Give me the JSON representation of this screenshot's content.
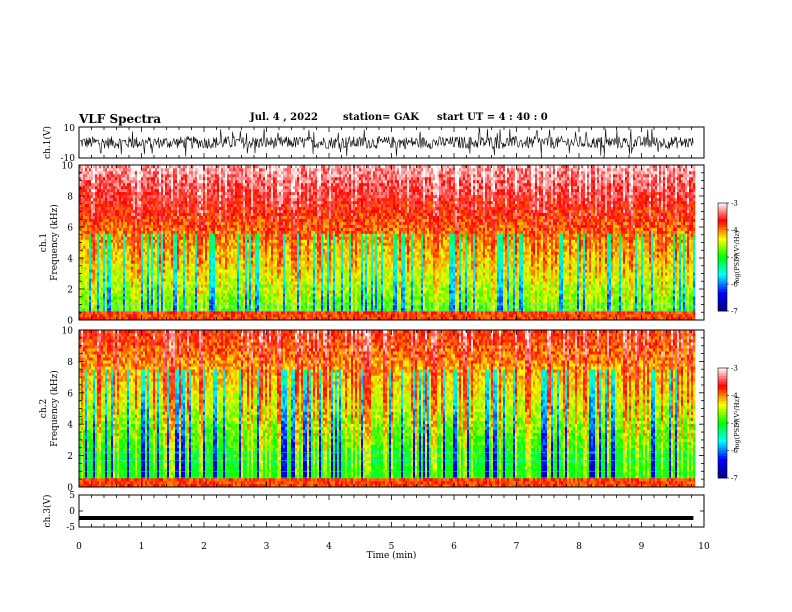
{
  "header": {
    "title": "VLF Spectra",
    "date": "Jul. 4 , 2022",
    "station": "station= GAK",
    "start": "start UT =  4 : 40 : 0"
  },
  "chart_data": [
    {
      "type": "line",
      "id": "ch1-waveform",
      "ylabel": "ch.1(V)",
      "ylim": [
        -10,
        10
      ],
      "yticks": [
        "10",
        "-10"
      ],
      "xlim": [
        0,
        10
      ],
      "data_range": [
        0,
        9.83
      ],
      "typical_amplitude": [
        -5,
        5
      ],
      "color": "#000000"
    },
    {
      "type": "heatmap",
      "id": "ch1-spectrogram",
      "ylabel": "ch.1",
      "ylabel2": "Frequency (kHz)",
      "ylim": [
        0,
        10
      ],
      "yticks": [
        "0",
        "2",
        "4",
        "6",
        "8",
        "10"
      ],
      "xlim": [
        0,
        10
      ],
      "data_range": [
        0,
        9.83
      ],
      "colorbar": {
        "label": "log(PSD)(V²/Hz)",
        "range": [
          -7,
          -3
        ],
        "ticks": [
          "-3",
          "-4",
          "-5",
          "-6",
          "-7"
        ],
        "colormap": [
          "#000080",
          "#0000ff",
          "#00ffff",
          "#00ff00",
          "#ffff00",
          "#ff0000",
          "#ffffff"
        ]
      }
    },
    {
      "type": "heatmap",
      "id": "ch2-spectrogram",
      "ylabel": "ch.2",
      "ylabel2": "Frequency (kHz)",
      "ylim": [
        0,
        10
      ],
      "yticks": [
        "0",
        "2",
        "4",
        "6",
        "8",
        "10"
      ],
      "xlim": [
        0,
        10
      ],
      "data_range": [
        0,
        9.83
      ],
      "colorbar": {
        "label": "log(PSD)(V²/Hz)",
        "range": [
          -7,
          -3
        ],
        "ticks": [
          "-3",
          "-4",
          "-5",
          "-6",
          "-7"
        ],
        "colormap": [
          "#000080",
          "#0000ff",
          "#00ffff",
          "#00ff00",
          "#ffff00",
          "#ff0000",
          "#ffffff"
        ]
      }
    },
    {
      "type": "line",
      "id": "ch3-waveform",
      "ylabel": "ch.3(V)",
      "ylim": [
        -5,
        5
      ],
      "yticks": [
        "5",
        "0",
        "-5"
      ],
      "xlim": [
        0,
        10
      ],
      "data_range": [
        0,
        9.83
      ],
      "series": [
        {
          "x": [
            0,
            9.83
          ],
          "y": [
            -2.2,
            -2.2
          ]
        }
      ],
      "color": "#000000"
    }
  ],
  "x_axis": {
    "label": "Time (min)",
    "ticks": [
      "0",
      "1",
      "2",
      "3",
      "4",
      "5",
      "6",
      "7",
      "8",
      "9",
      "10"
    ]
  }
}
